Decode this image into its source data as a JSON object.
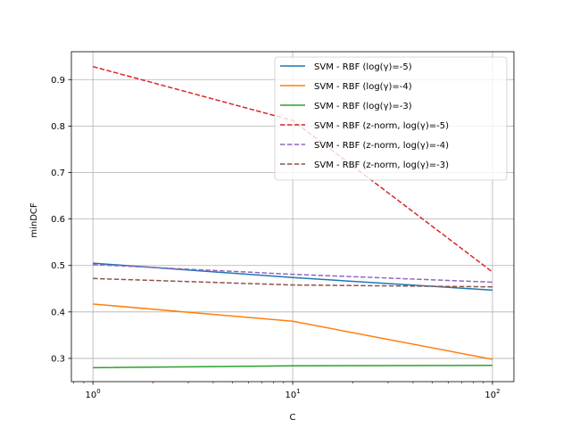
{
  "chart_data": {
    "type": "line",
    "title": "",
    "xlabel": "C",
    "ylabel": "minDCF",
    "xscale": "log",
    "x": [
      1,
      10,
      100
    ],
    "xlim": [
      0.78,
      128
    ],
    "ylim": [
      0.25,
      0.96
    ],
    "x_ticks": [
      {
        "value": 1,
        "base": "10",
        "exp": "0"
      },
      {
        "value": 10,
        "base": "10",
        "exp": "1"
      },
      {
        "value": 100,
        "base": "10",
        "exp": "2"
      }
    ],
    "y_ticks": [
      0.3,
      0.4,
      0.5,
      0.6,
      0.7,
      0.8,
      0.9
    ],
    "grid": true,
    "legend_position": "top-right",
    "series": [
      {
        "name": "SVM - RBF (log(γ)=-5)",
        "values": [
          0.505,
          0.474,
          0.447
        ],
        "color": "#1f77b4",
        "dash": "solid"
      },
      {
        "name": "SVM - RBF (log(γ)=-4)",
        "values": [
          0.417,
          0.38,
          0.298
        ],
        "color": "#ff7f0e",
        "dash": "solid"
      },
      {
        "name": "SVM - RBF (log(γ)=-3)",
        "values": [
          0.28,
          0.284,
          0.285
        ],
        "color": "#2ca02c",
        "dash": "solid"
      },
      {
        "name": "SVM - RBF (z-norm, log(γ)=-5)",
        "values": [
          0.928,
          0.812,
          0.486
        ],
        "color": "#d62728",
        "dash": "dashed"
      },
      {
        "name": "SVM - RBF (z-norm, log(γ)=-4)",
        "values": [
          0.502,
          0.481,
          0.464
        ],
        "color": "#9467bd",
        "dash": "dashed"
      },
      {
        "name": "SVM - RBF (z-norm, log(γ)=-3)",
        "values": [
          0.472,
          0.458,
          0.454
        ],
        "color": "#8c564b",
        "dash": "dashed"
      }
    ]
  }
}
